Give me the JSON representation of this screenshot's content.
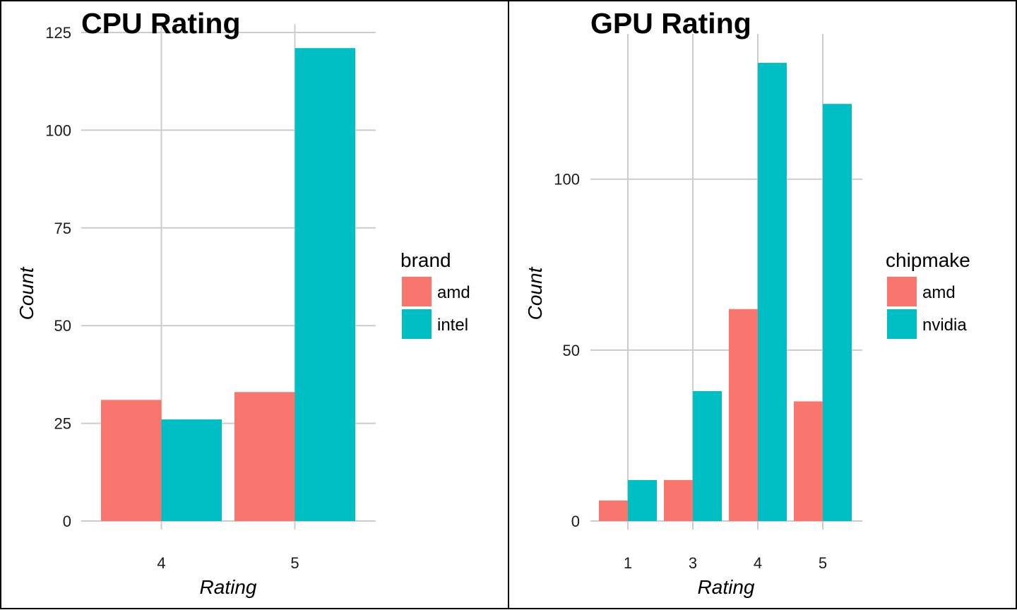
{
  "chart_data": [
    {
      "type": "bar",
      "title": "CPU Rating",
      "xlabel": "Rating",
      "ylabel": "Count",
      "categories": [
        "4",
        "5"
      ],
      "ylim": [
        0,
        125
      ],
      "yticks": [
        0,
        25,
        50,
        75,
        100,
        125
      ],
      "grid": true,
      "legend_title": "brand",
      "legend_position": "right",
      "series": [
        {
          "name": "amd",
          "color": "#F8766D",
          "values": [
            31,
            33
          ]
        },
        {
          "name": "intel",
          "color": "#00BFC4",
          "values": [
            26,
            121
          ]
        }
      ]
    },
    {
      "type": "bar",
      "title": "GPU Rating",
      "xlabel": "Rating",
      "ylabel": "Count",
      "categories": [
        "1",
        "3",
        "4",
        "5"
      ],
      "ylim": [
        0,
        140
      ],
      "yticks": [
        0,
        50,
        100
      ],
      "grid": true,
      "legend_title": "chipmake",
      "legend_position": "right",
      "series": [
        {
          "name": "amd",
          "color": "#F8766D",
          "values": [
            6,
            12,
            62,
            35
          ]
        },
        {
          "name": "nvidia",
          "color": "#00BFC4",
          "values": [
            12,
            38,
            134,
            122
          ]
        }
      ]
    }
  ]
}
